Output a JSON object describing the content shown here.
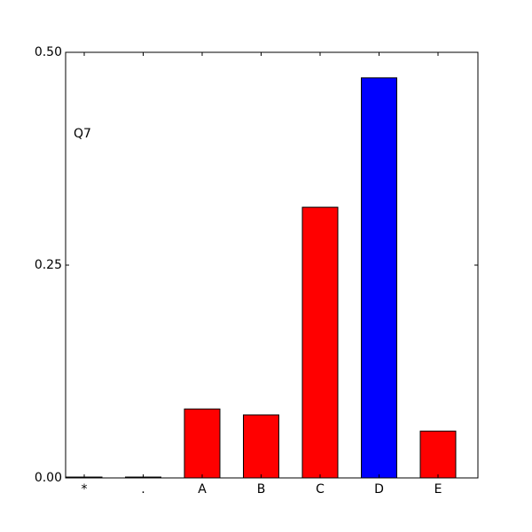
{
  "chart_data": {
    "type": "bar",
    "annotation": "Q7",
    "categories": [
      "*",
      ".",
      "A",
      "B",
      "C",
      "D",
      "E"
    ],
    "values": [
      0.001,
      0.001,
      0.081,
      0.074,
      0.318,
      0.47,
      0.055
    ],
    "colors": [
      "#ff0000",
      "#ff0000",
      "#ff0000",
      "#ff0000",
      "#ff0000",
      "#0000ff",
      "#ff0000"
    ],
    "ylim": [
      0,
      0.5
    ],
    "yticks": [
      {
        "value": 0,
        "label": "0.00"
      },
      {
        "value": 0.25,
        "label": "0.25"
      },
      {
        "value": 0.5,
        "label": "0.50"
      }
    ],
    "grid": false
  }
}
